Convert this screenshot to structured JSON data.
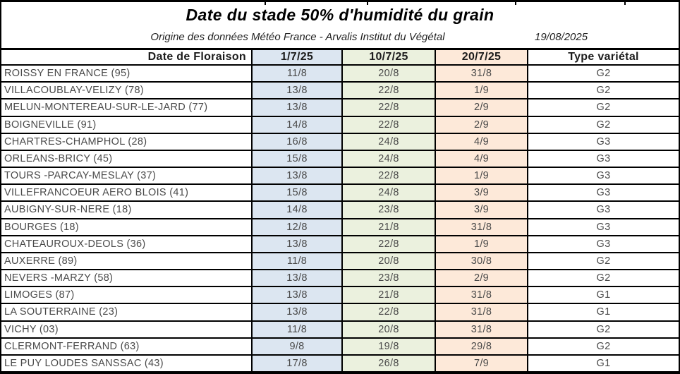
{
  "header": {
    "title": "Date du stade 50% d'humidité du grain",
    "subtitle": "Origine des données Météo France - Arvalis Institut du Végétal",
    "date": "19/08/2025"
  },
  "table": {
    "columns": [
      "Date de Floraison",
      "1/7/25",
      "10/7/25",
      "20/7/25",
      "Type variétal"
    ],
    "rows": [
      [
        "ROISSY EN FRANCE (95)",
        "11/8",
        "20/8",
        "31/8",
        "G2"
      ],
      [
        "VILLACOUBLAY-VELIZY (78)",
        "13/8",
        "22/8",
        "1/9",
        "G2"
      ],
      [
        "MELUN-MONTEREAU-SUR-LE-JARD (77)",
        "13/8",
        "22/8",
        "2/9",
        "G2"
      ],
      [
        "BOIGNEVILLE (91)",
        "14/8",
        "22/8",
        "2/9",
        "G2"
      ],
      [
        "CHARTRES-CHAMPHOL (28)",
        "16/8",
        "24/8",
        "4/9",
        "G3"
      ],
      [
        "ORLEANS-BRICY (45)",
        "15/8",
        "24/8",
        "4/9",
        "G3"
      ],
      [
        "TOURS -PARCAY-MESLAY (37)",
        "13/8",
        "22/8",
        "1/9",
        "G3"
      ],
      [
        "VILLEFRANCOEUR AERO BLOIS (41)",
        "15/8",
        "24/8",
        "3/9",
        "G3"
      ],
      [
        "AUBIGNY-SUR-NERE (18)",
        "14/8",
        "23/8",
        "3/9",
        "G3"
      ],
      [
        "BOURGES (18)",
        "12/8",
        "21/8",
        "31/8",
        "G3"
      ],
      [
        "CHATEAUROUX-DEOLS (36)",
        "13/8",
        "22/8",
        "1/9",
        "G3"
      ],
      [
        "AUXERRE (89)",
        "11/8",
        "20/8",
        "30/8",
        "G2"
      ],
      [
        "NEVERS -MARZY (58)",
        "13/8",
        "23/8",
        "2/9",
        "G2"
      ],
      [
        "LIMOGES (87)",
        "13/8",
        "21/8",
        "31/8",
        "G1"
      ],
      [
        "LA SOUTERRAINE (23)",
        "13/8",
        "22/8",
        "31/8",
        "G1"
      ],
      [
        "VICHY (03)",
        "11/8",
        "20/8",
        "31/8",
        "G2"
      ],
      [
        "CLERMONT-FERRAND (63)",
        "9/8",
        "19/8",
        "29/8",
        "G2"
      ],
      [
        "LE PUY LOUDES SANSSAC (43)",
        "17/8",
        "26/8",
        "7/9",
        "G1"
      ]
    ]
  },
  "colors": {
    "fill_1_7": "#DCE6F1",
    "fill_10_7": "#EBF1DE",
    "fill_20_7": "#FDE9D9",
    "border": "#000000"
  }
}
